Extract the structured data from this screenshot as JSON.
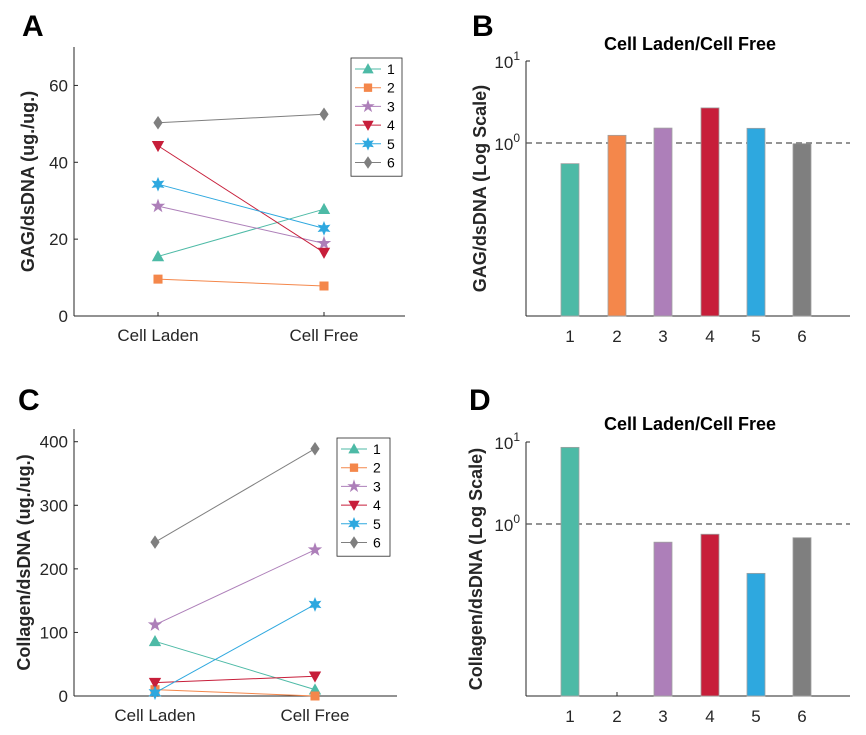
{
  "chart_data": [
    {
      "panel": "A",
      "type": "line",
      "categories": [
        "Cell Laden",
        "Cell Free"
      ],
      "ylabel": "GAG/dsDNA (ug./ug.)",
      "ylim": [
        0,
        70
      ],
      "yticks": [
        0,
        20,
        40,
        60
      ],
      "legend_position": "top-right",
      "series": [
        {
          "name": "1",
          "values": [
            15.5,
            27.8
          ],
          "color": "#4dbaa6",
          "marker": "triangle-up"
        },
        {
          "name": "2",
          "values": [
            9.6,
            7.8
          ],
          "color": "#f4874b",
          "marker": "square"
        },
        {
          "name": "3",
          "values": [
            28.6,
            18.9
          ],
          "color": "#ad7fb9",
          "marker": "star"
        },
        {
          "name": "4",
          "values": [
            44.3,
            16.5
          ],
          "color": "#c71e3a",
          "marker": "triangle-down"
        },
        {
          "name": "5",
          "values": [
            34.3,
            22.8
          ],
          "color": "#2ea8df",
          "marker": "hexagram"
        },
        {
          "name": "6",
          "values": [
            50.3,
            52.5
          ],
          "color": "#7f7f7f",
          "marker": "diamond"
        }
      ]
    },
    {
      "panel": "B",
      "type": "bar",
      "title": "Cell Laden/Cell Free",
      "ylabel": "GAG/dsDNA (Log Scale)",
      "yscale": "log",
      "ytick_labels": [
        "10^0",
        "10^1"
      ],
      "reference_line": 1,
      "categories": [
        "1",
        "2",
        "3",
        "4",
        "5",
        "6"
      ],
      "values": [
        0.56,
        1.24,
        1.52,
        2.68,
        1.51,
        0.98
      ],
      "colors": [
        "#4dbaa6",
        "#f4874b",
        "#ad7fb9",
        "#c71e3a",
        "#2ea8df",
        "#7f7f7f"
      ]
    },
    {
      "panel": "C",
      "type": "line",
      "categories": [
        "Cell Laden",
        "Cell Free"
      ],
      "ylabel": "Collagen/dsDNA (ug./ug.)",
      "ylim": [
        0,
        420
      ],
      "yticks": [
        0,
        100,
        200,
        300,
        400
      ],
      "legend_position": "top-right",
      "series": [
        {
          "name": "1",
          "values": [
            86,
            10
          ],
          "color": "#4dbaa6",
          "marker": "triangle-up"
        },
        {
          "name": "2",
          "values": [
            10,
            0
          ],
          "color": "#f4874b",
          "marker": "square"
        },
        {
          "name": "3",
          "values": [
            112,
            230
          ],
          "color": "#ad7fb9",
          "marker": "star"
        },
        {
          "name": "4",
          "values": [
            21,
            31
          ],
          "color": "#c71e3a",
          "marker": "triangle-down"
        },
        {
          "name": "5",
          "values": [
            5,
            144
          ],
          "color": "#2ea8df",
          "marker": "hexagram"
        },
        {
          "name": "6",
          "values": [
            242,
            389
          ],
          "color": "#7f7f7f",
          "marker": "diamond"
        }
      ]
    },
    {
      "panel": "D",
      "type": "bar",
      "title": "Cell Laden/Cell Free",
      "ylabel": "Collagen/dsDNA (Log Scale)",
      "yscale": "log",
      "ytick_labels": [
        "10^0",
        "10^1"
      ],
      "reference_line": 1,
      "categories": [
        "1",
        "2",
        "3",
        "4",
        "5",
        "6"
      ],
      "values": [
        8.6,
        null,
        0.6,
        0.75,
        0.25,
        0.68
      ],
      "colors": [
        "#4dbaa6",
        "#f4874b",
        "#ad7fb9",
        "#c71e3a",
        "#2ea8df",
        "#7f7f7f"
      ]
    }
  ]
}
